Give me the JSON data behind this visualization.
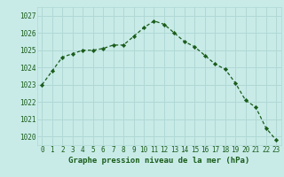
{
  "x": [
    0,
    1,
    2,
    3,
    4,
    5,
    6,
    7,
    8,
    9,
    10,
    11,
    12,
    13,
    14,
    15,
    16,
    17,
    18,
    19,
    20,
    21,
    22,
    23
  ],
  "y": [
    1023.0,
    1023.8,
    1024.6,
    1024.8,
    1025.0,
    1025.0,
    1025.1,
    1025.3,
    1025.3,
    1025.8,
    1026.3,
    1026.7,
    1026.5,
    1026.0,
    1025.5,
    1025.2,
    1024.7,
    1024.2,
    1023.9,
    1023.1,
    1022.1,
    1021.7,
    1020.5,
    1019.8
  ],
  "bg_color": "#c8ebe8",
  "grid_color": "#b0d8d4",
  "line_color": "#1a5c1a",
  "marker_color": "#1a5c1a",
  "xlabel": "Graphe pression niveau de la mer (hPa)",
  "ylim_min": 1019.5,
  "ylim_max": 1027.5,
  "yticks": [
    1020,
    1021,
    1022,
    1023,
    1024,
    1025,
    1026,
    1027
  ],
  "tick_color": "#1a5c1a",
  "xlabel_color": "#1a5c1a",
  "font_family": "monospace",
  "tick_fontsize": 5.5,
  "xlabel_fontsize": 6.5
}
